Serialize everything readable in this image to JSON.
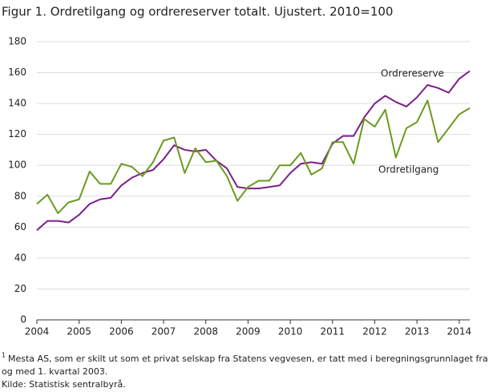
{
  "chart_data": {
    "type": "line",
    "title": "Figur 1. Ordretilgang og ordrereserver totalt. Ujustert. 2010=100",
    "categories": [
      "2004",
      null,
      null,
      null,
      "2005",
      null,
      null,
      null,
      "2006",
      null,
      null,
      null,
      "2007",
      null,
      null,
      null,
      "2008",
      null,
      null,
      null,
      "2009",
      null,
      null,
      null,
      "2010",
      null,
      null,
      null,
      "2011",
      null,
      null,
      null,
      "2012",
      null,
      null,
      null,
      "2013",
      null,
      null,
      null,
      "2014",
      null
    ],
    "series": [
      {
        "name": "Ordrereserve",
        "color": "#7b1f8a",
        "values": [
          58,
          64,
          64,
          63,
          68,
          75,
          78,
          79,
          87,
          92,
          95,
          97,
          104,
          113,
          110,
          109,
          110,
          103,
          98,
          86,
          85,
          85,
          86,
          87,
          95,
          101,
          102,
          101,
          114,
          119,
          119,
          131,
          140,
          145,
          141,
          138,
          144,
          152,
          150,
          147,
          156,
          161
        ]
      },
      {
        "name": "Ordretilgang",
        "color": "#6a9a1f",
        "values": [
          75,
          81,
          69,
          76,
          78,
          96,
          88,
          88,
          101,
          99,
          93,
          102,
          116,
          118,
          95,
          111,
          102,
          103,
          93,
          77,
          86,
          90,
          90,
          100,
          100,
          108,
          94,
          98,
          115,
          115,
          101,
          130,
          125,
          136,
          105,
          124,
          128,
          142,
          115,
          124,
          133,
          137
        ]
      }
    ],
    "ylim": [
      0,
      180
    ],
    "yticks": [
      0,
      20,
      40,
      60,
      80,
      100,
      120,
      140,
      160,
      180
    ],
    "grid": true,
    "footnote_mark": "1",
    "footnote": [
      "Mesta AS, som er skilt ut som et privat selskap fra Statens vegvesen, er tatt med i beregningsgrunnlaget fra",
      "og med 1. kvartal 2003."
    ],
    "source": "Kilde: Statistisk sentralbyrå."
  }
}
